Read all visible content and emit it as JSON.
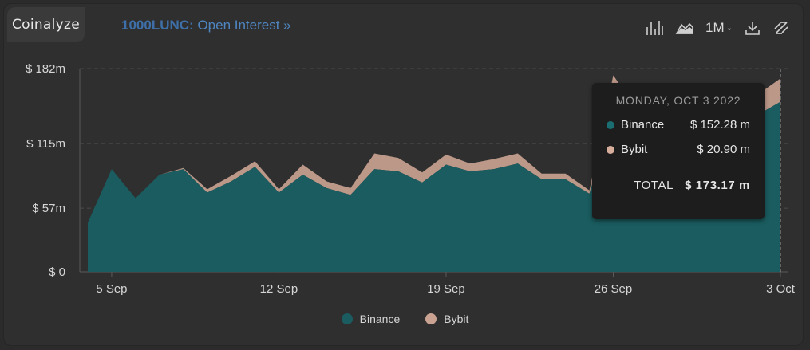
{
  "brand": "Coinalyze",
  "header": {
    "symbol": "1000LUNC:",
    "metric": "Open Interest »"
  },
  "toolbar": {
    "icons": [
      "bar-chart-icon",
      "area-chart-icon",
      "download-icon",
      "arrows-icon"
    ],
    "interval": "1M",
    "interval_caret": "⌄"
  },
  "chart_data": {
    "type": "area",
    "stacked": true,
    "x": [
      "2022-09-04",
      "2022-09-05",
      "2022-09-06",
      "2022-09-07",
      "2022-09-08",
      "2022-09-09",
      "2022-09-10",
      "2022-09-11",
      "2022-09-12",
      "2022-09-13",
      "2022-09-14",
      "2022-09-15",
      "2022-09-16",
      "2022-09-17",
      "2022-09-18",
      "2022-09-19",
      "2022-09-20",
      "2022-09-21",
      "2022-09-22",
      "2022-09-23",
      "2022-09-24",
      "2022-09-25",
      "2022-09-26",
      "2022-09-27",
      "2022-09-28",
      "2022-09-29",
      "2022-09-30",
      "2022-10-01",
      "2022-10-02",
      "2022-10-03"
    ],
    "series": [
      {
        "name": "Binance",
        "color": "#1a5c5f",
        "values": [
          44,
          92,
          66,
          87,
          92,
          71,
          81,
          94,
          71,
          87,
          75,
          69,
          92,
          90,
          80,
          96,
          90,
          92,
          97,
          83,
          83,
          70,
          140,
          140,
          140,
          140,
          140,
          140,
          140,
          152.28
        ]
      },
      {
        "name": "Bybit",
        "color": "#c9a291",
        "values": [
          0,
          0,
          0,
          0,
          1,
          3,
          5,
          5,
          3,
          9,
          6,
          6,
          14,
          12,
          9,
          9,
          7,
          9,
          9,
          5,
          5,
          3,
          36,
          5,
          5,
          5,
          5,
          5,
          18,
          20.9
        ]
      }
    ],
    "yticks": [
      0,
      57,
      115,
      182
    ],
    "ytick_labels": [
      "$ 0",
      "$ 57m",
      "$ 115m",
      "$ 182m"
    ],
    "xticks": [
      "2022-09-05",
      "2022-09-12",
      "2022-09-19",
      "2022-09-26",
      "2022-10-03"
    ],
    "xtick_labels": [
      "5 Sep",
      "12 Sep",
      "19 Sep",
      "26 Sep",
      "3 Oct"
    ],
    "ylim": [
      0,
      182
    ],
    "grid": true,
    "legend_position": "bottom"
  },
  "tooltip": {
    "date": "MONDAY, OCT 3 2022",
    "rows": [
      {
        "name": "Binance",
        "value": "$ 152.28 m",
        "color": "#1a5c5f"
      },
      {
        "name": "Bybit",
        "value": "$ 20.90 m",
        "color": "#c9a291"
      }
    ],
    "total_label": "TOTAL",
    "total_value": "$ 173.17 m"
  }
}
